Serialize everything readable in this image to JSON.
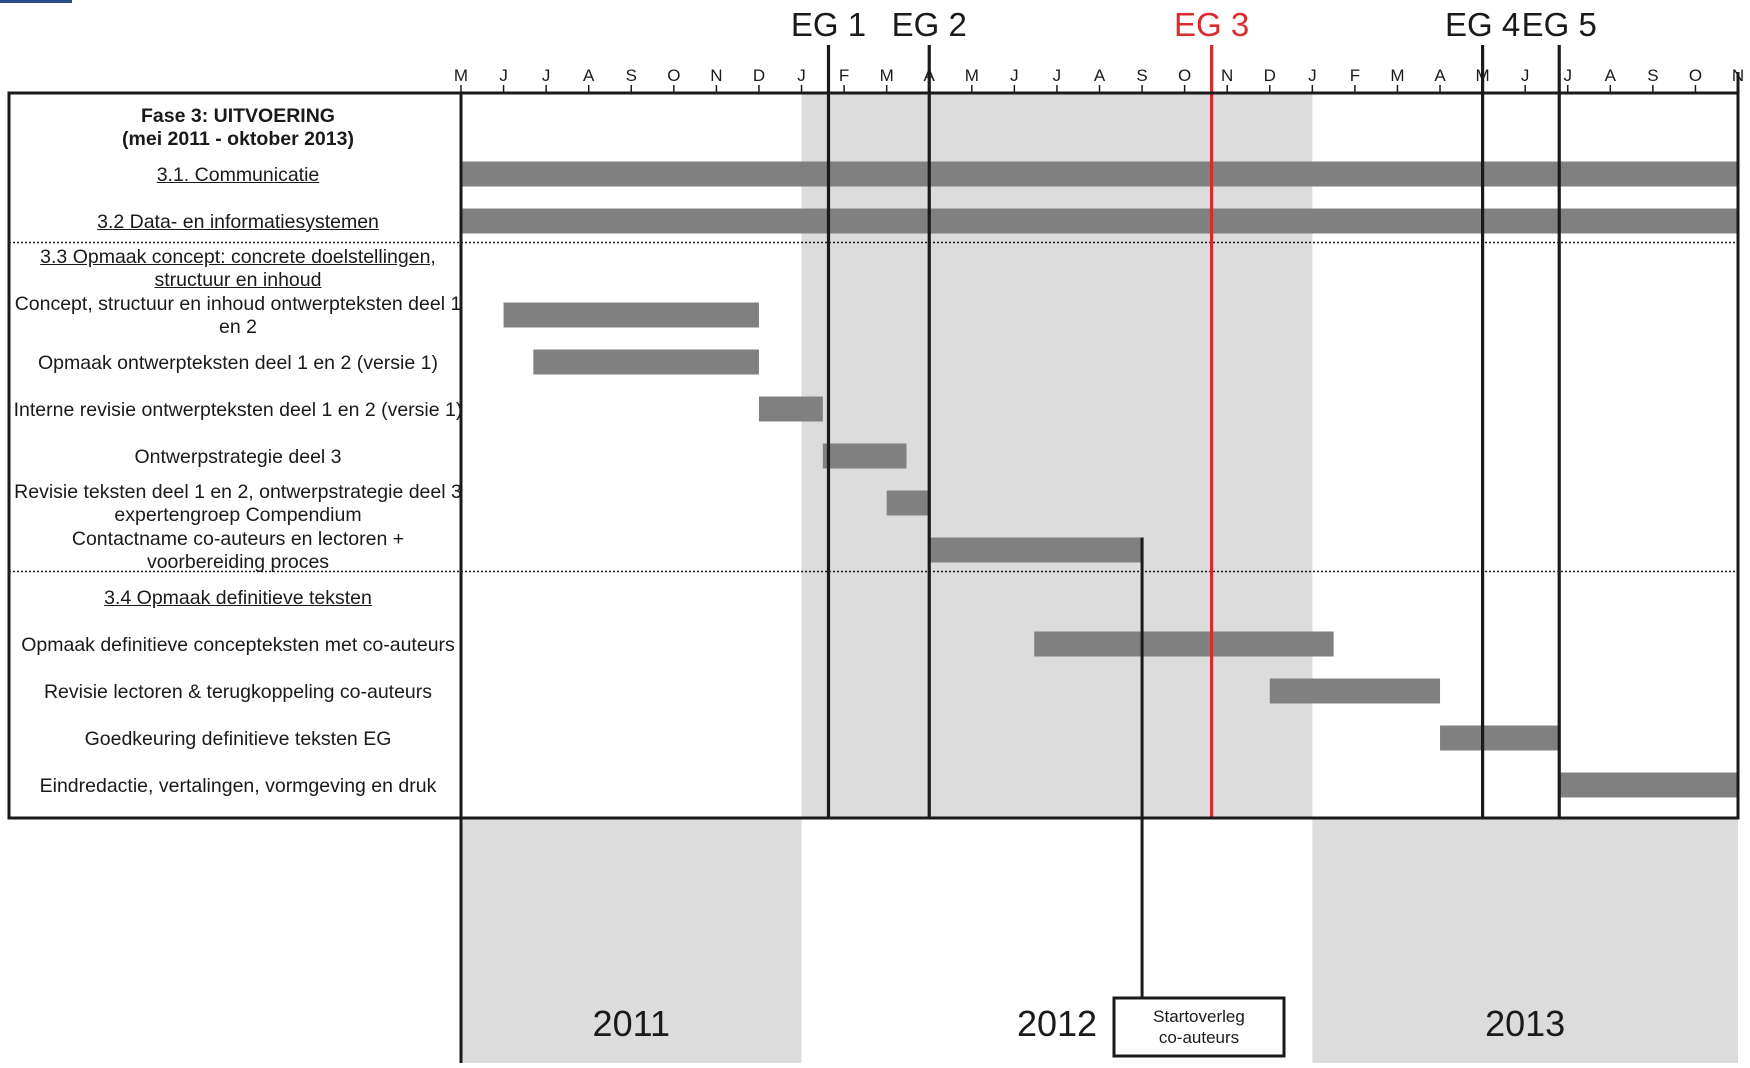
{
  "chart_data": {
    "type": "gantt",
    "time_axis": {
      "start": "2011-05",
      "end": "2013-11",
      "month_ticks": [
        "M",
        "J",
        "J",
        "A",
        "S",
        "O",
        "N",
        "D",
        "J",
        "F",
        "M",
        "A",
        "M",
        "J",
        "J",
        "A",
        "S",
        "O",
        "N",
        "D",
        "J",
        "F",
        "M",
        "A",
        "M",
        "J",
        "J",
        "A",
        "S",
        "O",
        "N"
      ]
    },
    "years": [
      {
        "label": "2011",
        "start": "2011-05",
        "end": "2012-01",
        "shaded": true
      },
      {
        "label": "2012",
        "start": "2012-01",
        "end": "2013-01",
        "shaded": false
      },
      {
        "label": "2013",
        "start": "2013-01",
        "end": "2013-11",
        "shaded": true
      }
    ],
    "milestones": [
      {
        "label": "EG 1",
        "date": "2012-01-20",
        "color": "#1a1a1a"
      },
      {
        "label": "EG 2",
        "date": "2012-04-01",
        "color": "#1a1a1a"
      },
      {
        "label": "EG 3",
        "date": "2012-10-20",
        "color": "#d92b2b"
      },
      {
        "label": "EG 4",
        "date": "2013-05-01",
        "color": "#1a1a1a"
      },
      {
        "label": "EG 5",
        "date": "2013-06-25",
        "color": "#1a1a1a"
      }
    ],
    "rows": [
      {
        "label": "Fase 3: UITVOERING\n(mei 2011 - oktober 2013)",
        "kind": "phase",
        "start": null,
        "end": null
      },
      {
        "label": "3.1. Communicatie",
        "kind": "section",
        "start": "2011-05-01",
        "end": "2013-11-01"
      },
      {
        "label": "3.2 Data- en informatiesystemen",
        "kind": "section",
        "start": "2011-05-01",
        "end": "2013-11-01"
      },
      {
        "label": "3.3 Opmaak concept: concrete doelstellingen, structuur en inhoud",
        "kind": "section",
        "start": null,
        "end": null
      },
      {
        "label": "Concept, structuur en inhoud ontwerpteksten deel 1 en 2",
        "kind": "task",
        "start": "2011-06-01",
        "end": "2011-12-01"
      },
      {
        "label": "Opmaak ontwerpteksten deel 1 en 2 (versie 1)",
        "kind": "task",
        "start": "2011-06-22",
        "end": "2011-12-01"
      },
      {
        "label": "Interne revisie ontwerpteksten deel 1 en 2 (versie 1)",
        "kind": "task",
        "start": "2011-12-01",
        "end": "2012-01-16"
      },
      {
        "label": "Ontwerpstrategie deel 3",
        "kind": "task",
        "start": "2012-01-16",
        "end": "2012-03-15"
      },
      {
        "label": "Revisie teksten deel 1 en 2, ontwerpstrategie deel 3 expertengroep Compendium",
        "kind": "task",
        "start": "2012-03-01",
        "end": "2012-03-31"
      },
      {
        "label": "Contactname co-auteurs en lectoren + voorbereiding proces",
        "kind": "task",
        "start": "2012-04-01",
        "end": "2012-09-01"
      },
      {
        "label": "3.4 Opmaak definitieve teksten",
        "kind": "section",
        "start": null,
        "end": null
      },
      {
        "label": "Opmaak definitieve concepteksten met co-auteurs",
        "kind": "task",
        "start": "2012-06-15",
        "end": "2013-01-16"
      },
      {
        "label": "Revisie lectoren & terugkoppeling co-auteurs",
        "kind": "task",
        "start": "2012-12-01",
        "end": "2013-04-01"
      },
      {
        "label": "Goedkeuring definitieve teksten EG",
        "kind": "task",
        "start": "2013-04-01",
        "end": "2013-06-25"
      },
      {
        "label": "Eindredactie, vertalingen, vormgeving en druk",
        "kind": "task",
        "start": "2013-06-25",
        "end": "2013-11-01"
      }
    ],
    "separators_after_row": [
      2,
      9
    ],
    "annotation": {
      "text": [
        "Startoverleg",
        "co-auteurs"
      ],
      "date": "2012-09-01"
    },
    "colors": {
      "bar": "#808080",
      "shade": "#dcdcdc",
      "milestone": "#1a1a1a",
      "milestone_highlight": "#d92b2b"
    }
  }
}
